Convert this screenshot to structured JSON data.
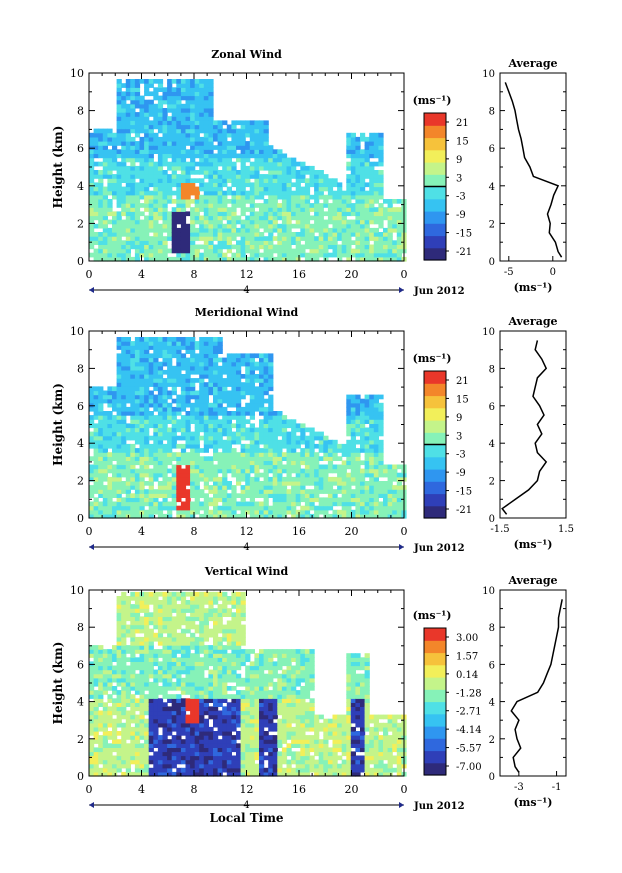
{
  "shared": {
    "date_label": "Jun 2012",
    "x_ticks": [
      "0",
      "4",
      "8",
      "12",
      "16",
      "20",
      "0"
    ],
    "bar_day": "4",
    "y_ticks": [
      "0",
      "2",
      "4",
      "6",
      "8",
      "10"
    ],
    "y_label": "Height (km)",
    "avg_title": "Average",
    "unit": "(ms⁻¹)",
    "x_axis_title": "Local Time"
  },
  "chart_data": [
    {
      "type": "heatmap",
      "title": "Zonal Wind",
      "ylabel": "Height (km)",
      "xlabel": "",
      "x_range_hours": [
        0,
        24
      ],
      "ylim": [
        0,
        10
      ],
      "colorbar_label": "(ms⁻¹)",
      "colorbar_ticks": [
        "21",
        "15",
        "9",
        "3",
        "-3",
        "-9",
        "-15",
        "-21"
      ],
      "colorbar_range": [
        -21,
        21
      ],
      "profile": {
        "xlim": [
          -6,
          1.5
        ],
        "xticks": [
          "-5",
          "0"
        ],
        "xlabel": "(ms⁻¹)",
        "heights": [
          0.2,
          0.5,
          1,
          1.5,
          2,
          2.5,
          3,
          3.5,
          4,
          4.5,
          5,
          5.5,
          6,
          6.5,
          7,
          7.5,
          8,
          8.5,
          9,
          9.5
        ],
        "values": [
          1,
          0.6,
          0.3,
          -0.4,
          -0.3,
          -0.6,
          -0.2,
          0.1,
          0.6,
          -2.2,
          -2.6,
          -3.2,
          -3.4,
          -3.6,
          -3.9,
          -4.1,
          -4.3,
          -4.6,
          -5,
          -5.4
        ]
      }
    },
    {
      "type": "heatmap",
      "title": "Meridional Wind",
      "ylabel": "Height (km)",
      "xlabel": "",
      "x_range_hours": [
        0,
        24
      ],
      "ylim": [
        0,
        10
      ],
      "colorbar_label": "(ms⁻¹)",
      "colorbar_ticks": [
        "21",
        "15",
        "9",
        "3",
        "-3",
        "-9",
        "-15",
        "-21"
      ],
      "colorbar_range": [
        -21,
        21
      ],
      "profile": {
        "xlim": [
          -1.5,
          1.5
        ],
        "xticks": [
          "-1.5",
          "1.5"
        ],
        "xlabel": "(ms⁻¹)",
        "heights": [
          0.2,
          0.5,
          1,
          1.5,
          2,
          2.5,
          3,
          3.5,
          4,
          4.5,
          5,
          5.5,
          6,
          6.5,
          7,
          7.5,
          8,
          8.5,
          9,
          9.5
        ],
        "values": [
          -1.2,
          -1.4,
          -0.8,
          -0.2,
          0.2,
          0.3,
          0.6,
          0.2,
          0.1,
          0.4,
          0.2,
          0.5,
          0.3,
          0.0,
          0.1,
          0.2,
          0.6,
          0.4,
          0.1,
          0.2
        ]
      }
    },
    {
      "type": "heatmap",
      "title": "Vertical Wind",
      "ylabel": "Height (km)",
      "xlabel": "Local Time",
      "x_range_hours": [
        0,
        24
      ],
      "ylim": [
        0,
        10
      ],
      "colorbar_label": "(ms⁻¹)",
      "colorbar_ticks": [
        "3.00",
        "1.57",
        "0.14",
        "-1.28",
        "-2.71",
        "-4.14",
        "-5.57",
        "-7.00"
      ],
      "colorbar_range": [
        -7,
        3
      ],
      "profile": {
        "xlim": [
          -4,
          -0.5
        ],
        "xticks": [
          "-3",
          "-1"
        ],
        "xlabel": "(ms⁻¹)",
        "heights": [
          0.2,
          0.5,
          1,
          1.5,
          2,
          2.5,
          3,
          3.5,
          4,
          4.5,
          5,
          5.5,
          6,
          6.5,
          7,
          7.5,
          8,
          8.5,
          9,
          9.5
        ],
        "values": [
          -3,
          -3.2,
          -3.3,
          -2.9,
          -3.1,
          -3.2,
          -3,
          -3.4,
          -3.1,
          -2,
          -1.7,
          -1.5,
          -1.3,
          -1.2,
          -1.1,
          -1,
          -0.9,
          -0.9,
          -0.8,
          -0.7
        ]
      }
    }
  ]
}
